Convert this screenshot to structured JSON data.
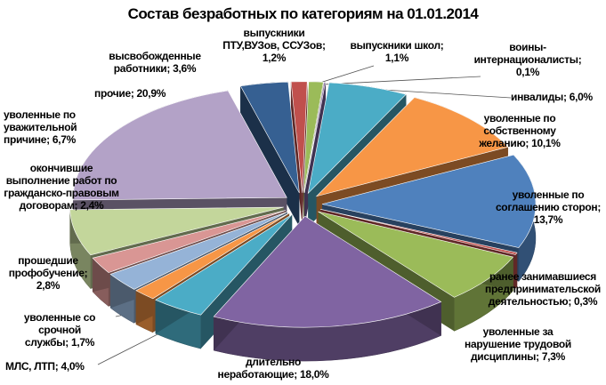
{
  "chart_data": {
    "type": "pie",
    "title": "Состав безработных по категориям на 01.01.2014",
    "slices": [
      {
        "label": "выпускники ПТУ,ВУЗов, ССУЗов",
        "value": 1.2,
        "text": "выпускники\nПТУ,ВУЗов, ССУЗов;\n1,2%",
        "color": "#C0504D"
      },
      {
        "label": "выпускники школ",
        "value": 1.1,
        "text": "выпускники школ;\n1,1%",
        "color": "#9BBB59"
      },
      {
        "label": "воины-интернационалисты",
        "value": 0.1,
        "text": "воины-\nинтернационалисты;\n0,1%",
        "color": "#8064A2"
      },
      {
        "label": "инвалиды",
        "value": 6.0,
        "text": "инвалиды; 6,0%",
        "color": "#4BACC6"
      },
      {
        "label": "уволенные по собственному желанию",
        "value": 10.1,
        "text": "уволенные по\nсобственному\nжеланию; 10,1%",
        "color": "#F79646"
      },
      {
        "label": "уволенные по соглашению сторон",
        "value": 13.7,
        "text": "уволенные по\nсоглашению сторон;\n13,7%",
        "color": "#4F81BD"
      },
      {
        "label": "ранее занимавшиеся предпринимательской деятельностью",
        "value": 0.3,
        "text": "ранее занимавшиеся\nпредпринимательской\nдеятельностью; 0,3%",
        "color": "#C0504D"
      },
      {
        "label": "уволенные за нарушение трудовой дисциплины",
        "value": 7.3,
        "text": "уволенные за\nнарушение трудовой\nдисциплины; 7,3%",
        "color": "#9BBB59"
      },
      {
        "label": "длительно неработающие",
        "value": 18.0,
        "text": "длительно\nнеработающие; 18,0%",
        "color": "#8064A2"
      },
      {
        "label": "МЛС, ЛТП",
        "value": 4.0,
        "text": "МЛС, ЛТП; 4,0%",
        "color": "#4BACC6"
      },
      {
        "label": "уволенные со срочной службы",
        "value": 1.7,
        "text": "уволенные со срочной\nслужбы; 1,7%",
        "color": "#F79646"
      },
      {
        "label": "прошедшие профобучение",
        "value": 2.8,
        "text": "прошедшие\nпрофобучение;\n2,8%",
        "color": "#95B3D7"
      },
      {
        "label": "окончившие выполнение работ по гражданско-правовым договорам",
        "value": 2.4,
        "text": "окончившие\nвыполнение работ по\nгражданско-правовым\nдоговорам; 2,4%",
        "color": "#D99694"
      },
      {
        "label": "уволенные по уважительной причине",
        "value": 6.7,
        "text": "уволенные по\nуважительной\nпричине; 6,7%",
        "color": "#C3D69B"
      },
      {
        "label": "прочие",
        "value": 20.9,
        "text": "прочие; 20,9%",
        "color": "#B3A2C7"
      },
      {
        "label": "высвобожденные работники",
        "value": 3.6,
        "text": "высвобожденные\nработники; 3,6%",
        "color": "#366092"
      }
    ]
  }
}
